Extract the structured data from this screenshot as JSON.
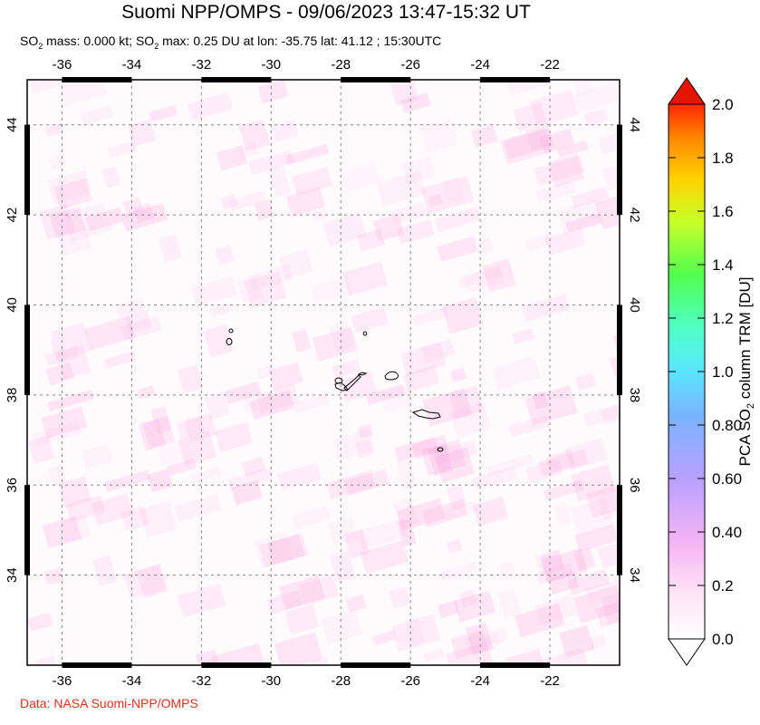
{
  "title": "Suomi NPP/OMPS - 09/06/2023 13:47-15:32 UT",
  "subtitle": {
    "part1": "SO",
    "sub1": "2",
    "part2": " mass: 0.000 kt; SO",
    "sub2": "2",
    "part3": " max: 0.25 DU at lon: -35.75 lat: 41.12 ; 15:30UTC"
  },
  "credit": "Data: NASA Suomi-NPP/OMPS",
  "map": {
    "lon_ticks": [
      "-36",
      "-34",
      "-32",
      "-30",
      "-28",
      "-26",
      "-24",
      "-22"
    ],
    "lat_ticks": [
      "44",
      "42",
      "40",
      "38",
      "36",
      "34"
    ],
    "lon_values": [
      -36,
      -34,
      -32,
      -30,
      -28,
      -26,
      -24,
      -22
    ],
    "lat_values": [
      44,
      42,
      40,
      38,
      36,
      34
    ],
    "lon_range": [
      -37,
      -20
    ],
    "lat_range": [
      32,
      45
    ],
    "grid": true,
    "features": "Azores islands outlines"
  },
  "colorbar": {
    "label_prefix": "PCA SO",
    "label_sub": "2",
    "label_suffix": " column TRM [DU]",
    "ticks": [
      "2.0",
      "1.8",
      "1.6",
      "1.4",
      "1.2",
      "1.0",
      "0.80",
      "0.60",
      "0.40",
      "0.2",
      "0.0"
    ],
    "range": [
      0.0,
      2.0
    ],
    "colors": [
      "#ffffff",
      "#ffc8f0",
      "#c8a0ff",
      "#8ca0ff",
      "#64c8ff",
      "#5affee",
      "#3cff8c",
      "#6eff3c",
      "#d2ff14",
      "#ffd700",
      "#ff8c00",
      "#ff3200",
      "#e61400"
    ]
  }
}
